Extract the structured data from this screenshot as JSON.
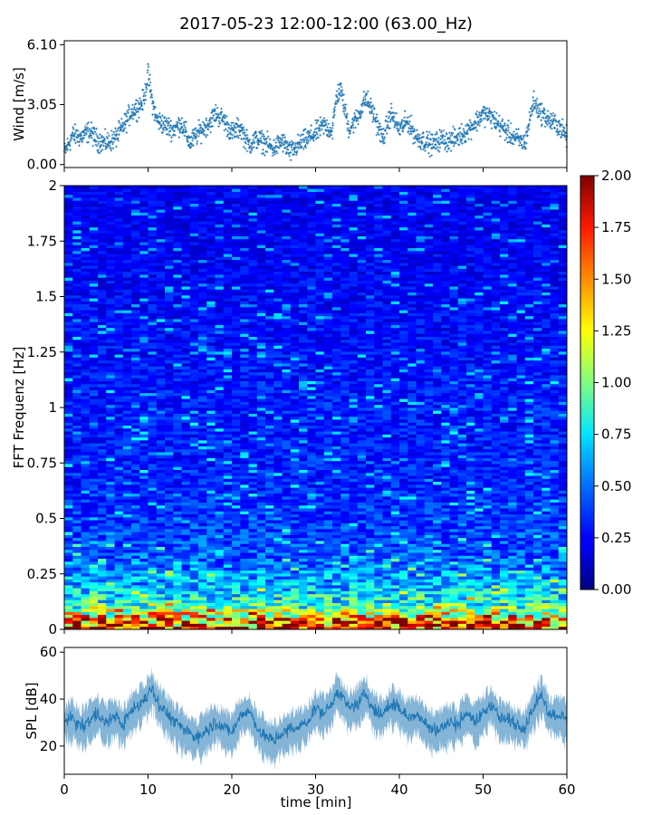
{
  "chart_data": [
    {
      "type": "scatter",
      "title": "2017-05-23 12:00-12:00 (63.00_Hz)",
      "ylabel": "Wind [m/s]",
      "xlim": [
        0,
        60
      ],
      "ylim": [
        -0.15,
        6.3
      ],
      "yticks": [
        "0.00",
        "3.05",
        "6.10"
      ],
      "ytick_values": [
        0.0,
        3.05,
        6.1
      ],
      "marker": "+",
      "color": "#1f77b4",
      "series": [
        {
          "x": [
            0,
            1,
            2,
            3,
            4,
            5,
            6,
            7,
            8,
            9,
            9.5,
            10,
            10.5,
            11,
            12,
            13,
            14,
            15,
            16,
            17,
            17.5,
            18,
            19,
            20,
            21,
            22,
            23,
            24,
            25,
            26,
            27,
            28,
            29,
            30,
            31,
            32,
            32.5,
            33,
            34,
            35,
            36,
            37,
            38,
            39,
            40,
            41,
            42,
            43,
            44,
            45,
            46,
            47,
            48,
            49,
            50,
            51,
            52,
            53,
            54,
            55,
            56,
            57,
            58,
            59,
            60
          ],
          "y": [
            0.6,
            1.5,
            1.4,
            1.7,
            1.2,
            1.1,
            1.3,
            1.9,
            2.7,
            3.0,
            3.3,
            4.6,
            3.2,
            2.3,
            2.0,
            1.8,
            2.1,
            1.1,
            1.6,
            2.0,
            2.2,
            2.6,
            2.3,
            1.6,
            1.9,
            1.0,
            1.3,
            1.1,
            0.8,
            1.2,
            0.6,
            1.0,
            1.3,
            1.6,
            2.0,
            1.7,
            3.5,
            3.8,
            1.8,
            2.4,
            3.4,
            2.5,
            1.3,
            2.6,
            1.8,
            2.2,
            1.4,
            1.2,
            1.0,
            1.3,
            1.2,
            1.4,
            1.7,
            2.1,
            2.6,
            2.4,
            2.0,
            1.6,
            1.3,
            1.1,
            3.2,
            2.6,
            2.2,
            2.0,
            1.4
          ]
        }
      ]
    },
    {
      "type": "heatmap",
      "ylabel": "FFT Frequenz [Hz]",
      "xlim": [
        0,
        60
      ],
      "ylim": [
        0,
        2
      ],
      "yticks": [
        "0",
        "0.25",
        "0.5",
        "0.75",
        "1",
        "1.25",
        "1.5",
        "1.75",
        "2"
      ],
      "ytick_values": [
        0,
        0.25,
        0.5,
        0.75,
        1,
        1.25,
        1.5,
        1.75,
        2
      ],
      "colormap": "jet",
      "colorbar": {
        "range": [
          0.0,
          2.0
        ],
        "ticks": [
          "0.00",
          "0.25",
          "0.50",
          "0.75",
          "1.00",
          "1.25",
          "1.50",
          "1.75",
          "2.00"
        ],
        "tick_values": [
          0.0,
          0.25,
          0.5,
          0.75,
          1.0,
          1.25,
          1.5,
          1.75,
          2.0
        ]
      },
      "mean_amplitude_by_frequency": {
        "freq": [
          0.0,
          0.02,
          0.05,
          0.08,
          0.1,
          0.15,
          0.2,
          0.25,
          0.3,
          0.4,
          0.5,
          0.75,
          1.0,
          1.25,
          1.5,
          1.75,
          2.0
        ],
        "value": [
          1.9,
          1.7,
          1.4,
          1.1,
          0.9,
          0.75,
          0.6,
          0.55,
          0.45,
          0.4,
          0.35,
          0.3,
          0.3,
          0.27,
          0.25,
          0.23,
          0.22
        ]
      }
    },
    {
      "type": "line",
      "ylabel": "SPL [dB]",
      "xlabel": "time [min]",
      "xlim": [
        0,
        60
      ],
      "ylim": [
        8,
        62
      ],
      "xticks": [
        "0",
        "10",
        "20",
        "30",
        "40",
        "50",
        "60"
      ],
      "xtick_values": [
        0,
        10,
        20,
        30,
        40,
        50,
        60
      ],
      "yticks": [
        "20",
        "40",
        "60"
      ],
      "ytick_values": [
        20,
        40,
        60
      ],
      "color": "#1f77b4",
      "series": [
        {
          "x": [
            0,
            1,
            2,
            3,
            4,
            5,
            6,
            7,
            8,
            9,
            10,
            10.5,
            11,
            12,
            13,
            14,
            15,
            16,
            17,
            18,
            19,
            20,
            21,
            22,
            23,
            24,
            25,
            26,
            27,
            28,
            29,
            30,
            31,
            32,
            32.5,
            33,
            34,
            35,
            36,
            37,
            38,
            39,
            40,
            41,
            42,
            43,
            44,
            45,
            46,
            47,
            48,
            49,
            50,
            51,
            52,
            53,
            54,
            55,
            56,
            57,
            58,
            59,
            60
          ],
          "y": [
            30,
            32,
            28,
            31,
            34,
            30,
            33,
            29,
            35,
            38,
            42,
            45,
            40,
            35,
            31,
            28,
            25,
            24,
            27,
            30,
            28,
            26,
            33,
            35,
            28,
            24,
            22,
            25,
            27,
            28,
            30,
            36,
            34,
            38,
            44,
            41,
            36,
            38,
            42,
            35,
            33,
            38,
            36,
            32,
            34,
            30,
            27,
            28,
            30,
            29,
            35,
            30,
            34,
            38,
            32,
            31,
            29,
            28,
            36,
            42,
            33,
            34,
            31
          ]
        }
      ]
    }
  ]
}
